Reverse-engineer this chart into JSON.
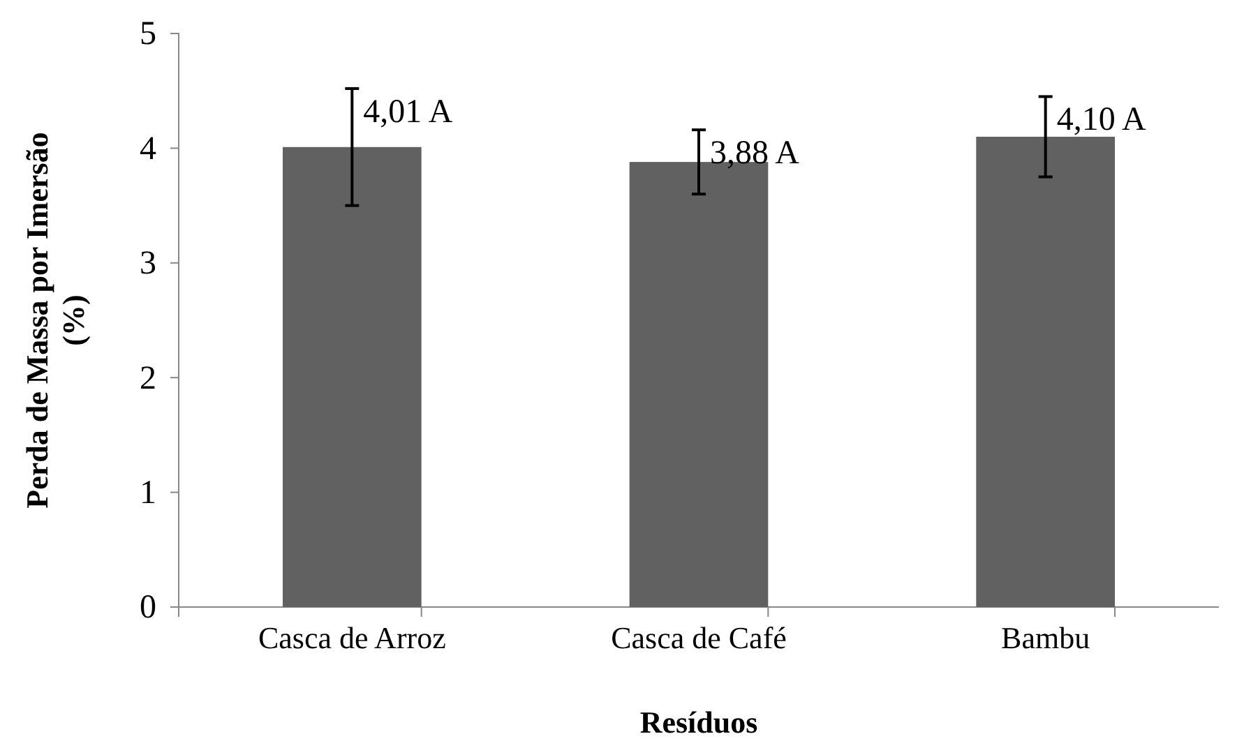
{
  "chart_data": {
    "type": "bar",
    "xlabel": "Resíduos",
    "ylabel": "Perda de Massa por Imersão (%)",
    "categories": [
      "Casca de Arroz",
      "Casca de Café",
      "Bambu"
    ],
    "values": [
      4.01,
      3.88,
      4.1
    ],
    "errors": [
      0.51,
      0.28,
      0.35
    ],
    "value_labels": [
      "4,01 A",
      "3,88 A",
      "4,10 A"
    ],
    "color": "#616161",
    "ylim": [
      0,
      5
    ],
    "yticks": [
      0,
      1,
      2,
      3,
      4,
      5
    ],
    "grid": false
  }
}
